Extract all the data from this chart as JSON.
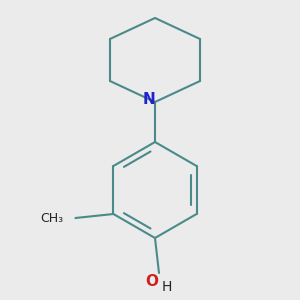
{
  "background_color": "#ebebeb",
  "bond_color": "#4a8a8a",
  "nitrogen_color": "#2222cc",
  "oxygen_color": "#cc2222",
  "text_color": "#222222",
  "bond_width": 1.5,
  "figsize": [
    3.0,
    3.0
  ],
  "dpi": 100,
  "n_label": "N",
  "oh_o_label": "O",
  "oh_h_label": "H",
  "methyl_label": "CH₃"
}
